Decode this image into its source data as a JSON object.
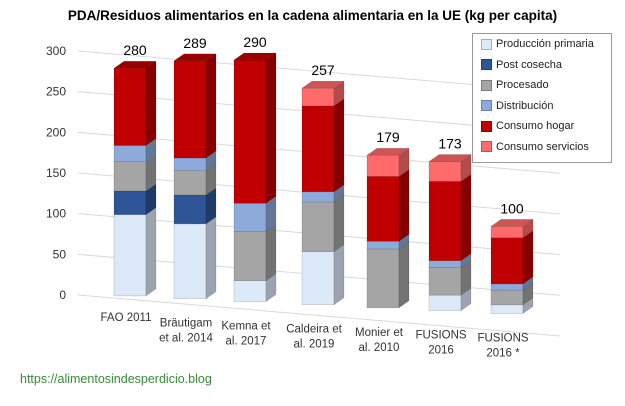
{
  "chart_data": {
    "type": "bar",
    "stacked": true,
    "style": "3d",
    "title": "PDA/Residuos  alimentarios en la cadena alimentaria en la UE (kg per capita)",
    "xlabel": "",
    "ylabel": "",
    "ylim": [
      0,
      300
    ],
    "yticks": [
      0,
      50,
      100,
      150,
      200,
      250,
      300
    ],
    "grid": true,
    "legend_position": "top-right",
    "categories": [
      [
        "FAO 2011"
      ],
      [
        "Bräutigam",
        "et al. 2014"
      ],
      [
        "Kemna et",
        "al. 2017"
      ],
      [
        "Caldeira et",
        "al. 2019"
      ],
      [
        "Monier et",
        "al. 2010"
      ],
      [
        "FUSIONS",
        "2016"
      ],
      [
        "FUSIONS",
        "2016 *"
      ]
    ],
    "totals": [
      280,
      289,
      290,
      257,
      179,
      173,
      100
    ],
    "series": [
      {
        "name": "Producción primaria",
        "color": "#dce9f8",
        "values": [
          100,
          91,
          25,
          63,
          0,
          18,
          10
        ]
      },
      {
        "name": "Post cosecha",
        "color": "#2e5597",
        "values": [
          29,
          35,
          0,
          0,
          0,
          0,
          0
        ]
      },
      {
        "name": "Procesado",
        "color": "#a5a5a5",
        "values": [
          36,
          30,
          59,
          59,
          69,
          32,
          17
        ]
      },
      {
        "name": "Distribución",
        "color": "#8eaadb",
        "values": [
          20,
          15,
          34,
          12,
          9,
          8,
          7
        ]
      },
      {
        "name": "Consumo hogar",
        "color": "#c00000",
        "values": [
          95,
          118,
          172,
          102,
          76,
          92,
          53
        ]
      },
      {
        "name": "Consumo servicios",
        "color": "#ff6b6b",
        "values": [
          0,
          0,
          0,
          21,
          25,
          23,
          13
        ]
      }
    ]
  },
  "footer": {
    "url": "https://alimentosindesperdicio.blog"
  }
}
